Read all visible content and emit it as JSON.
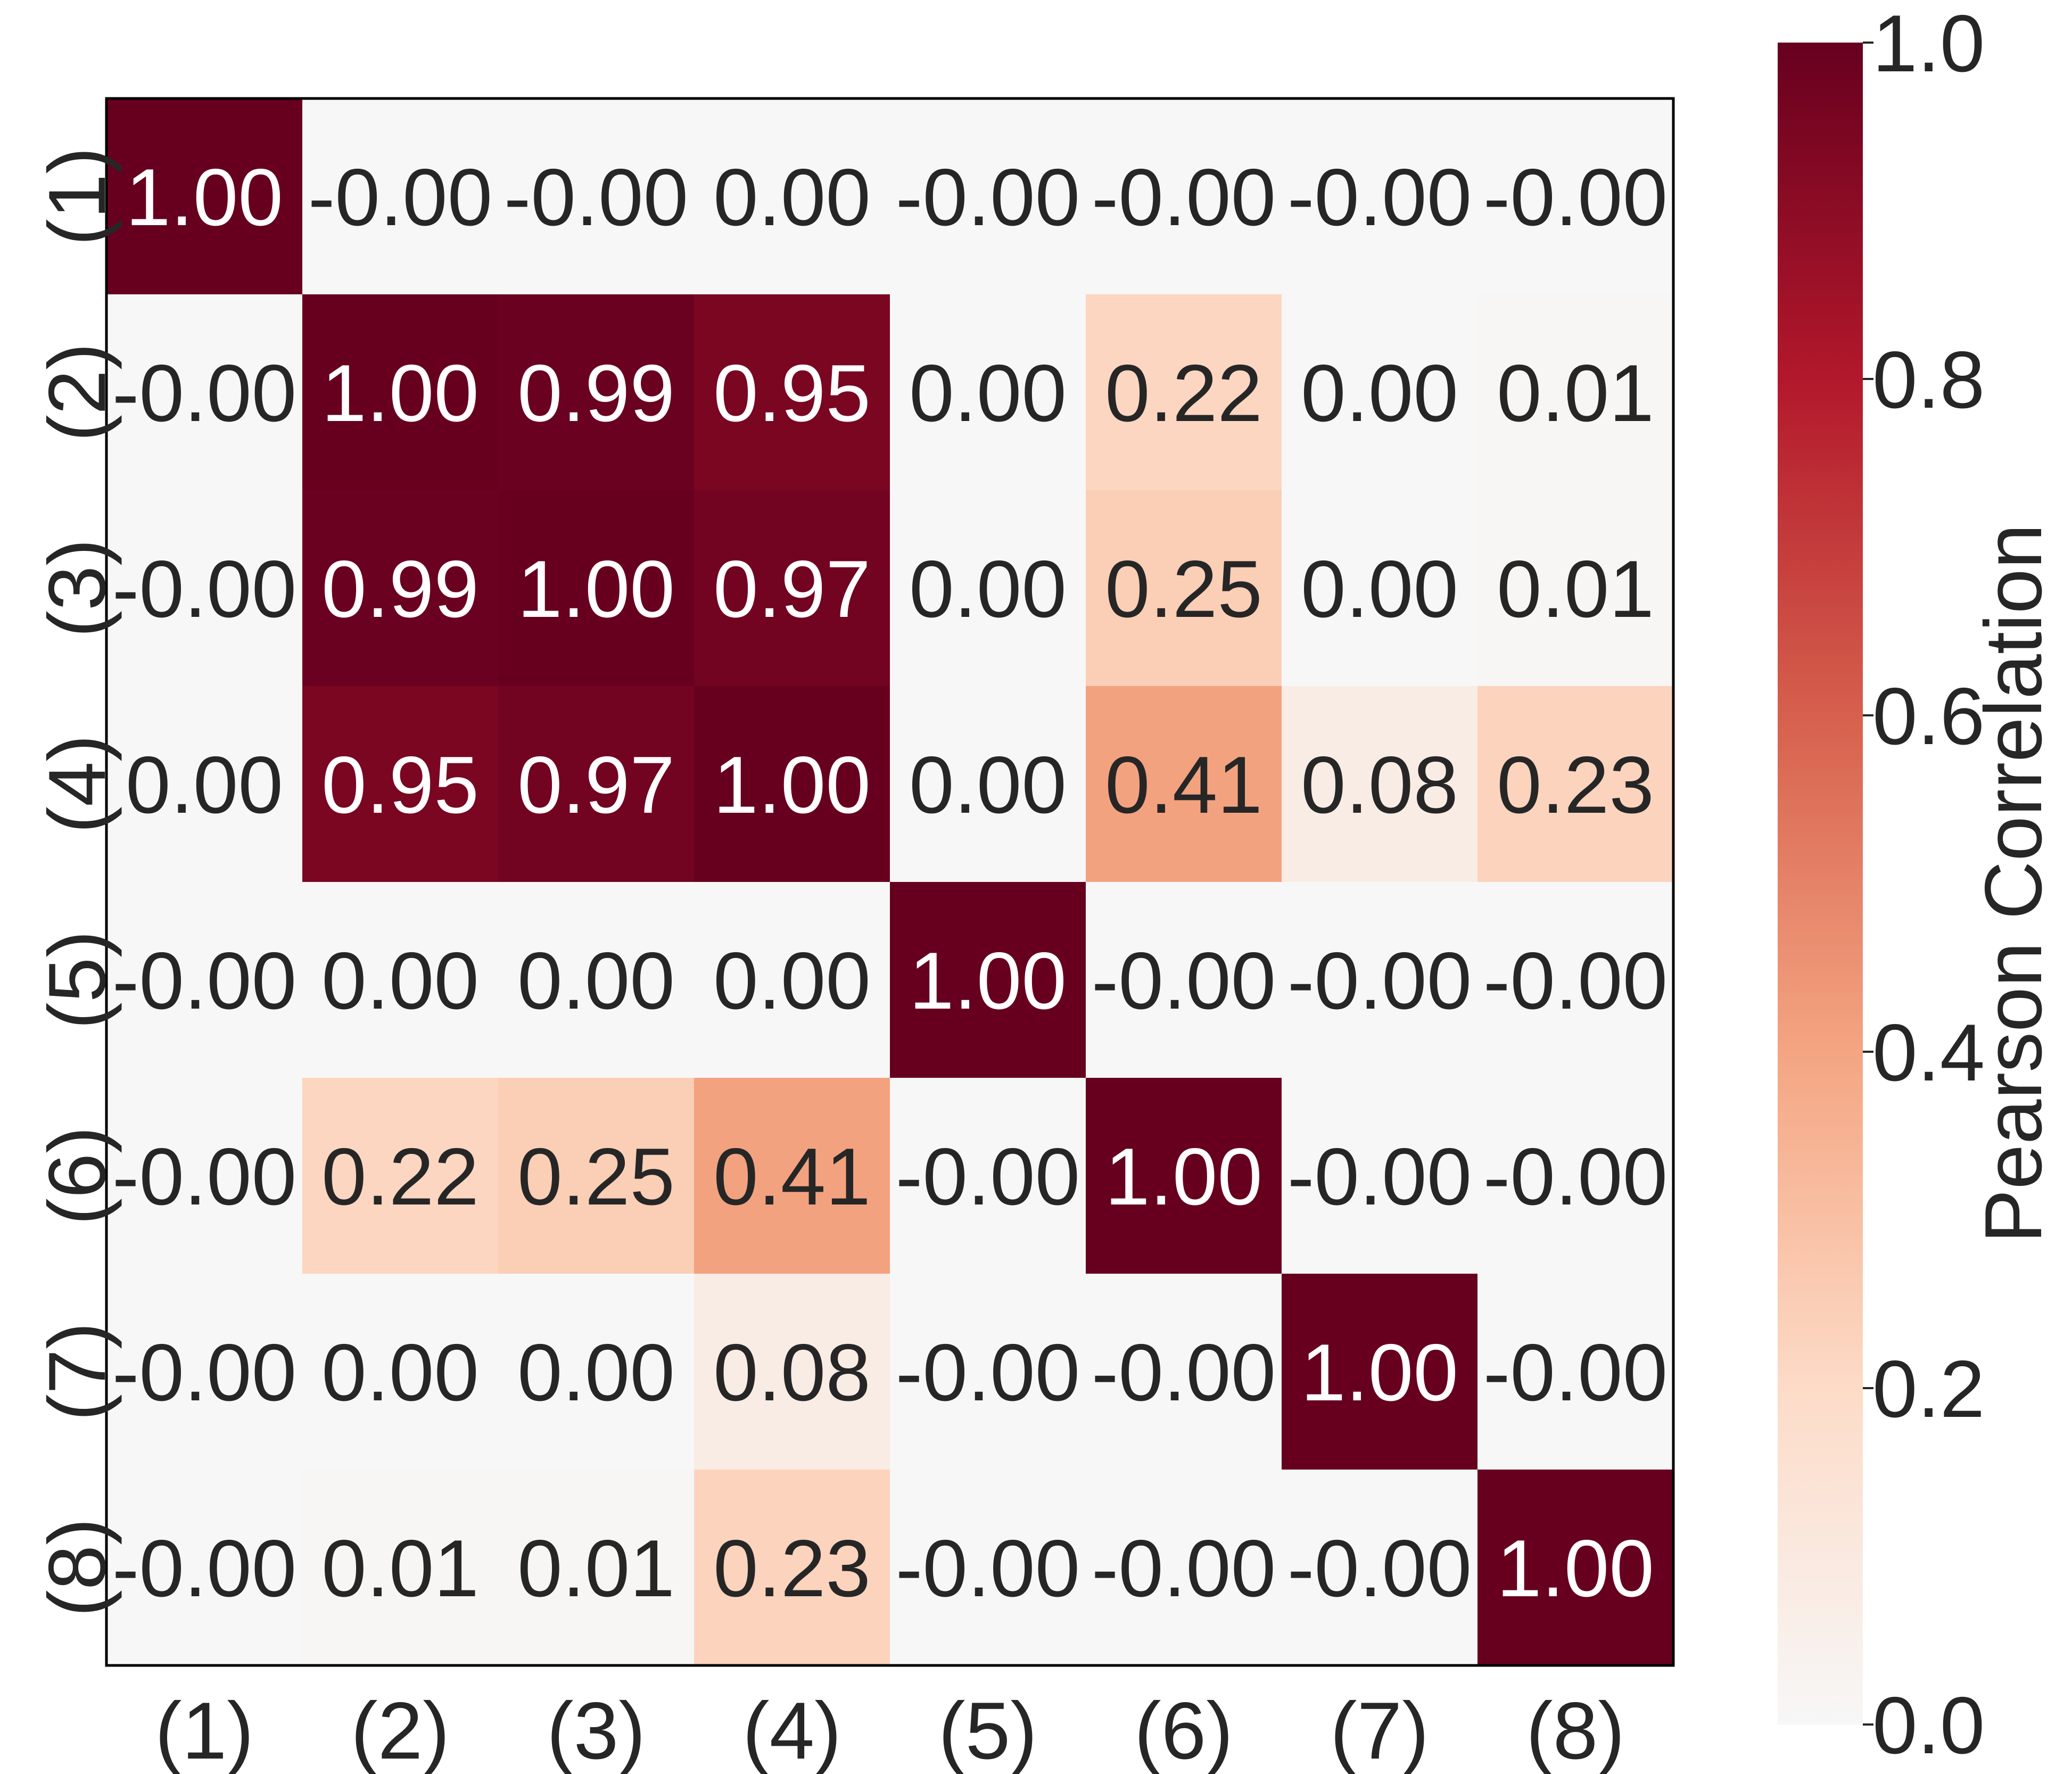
{
  "chart_data": {
    "type": "heatmap",
    "x_labels": [
      "(1)",
      "(2)",
      "(3)",
      "(4)",
      "(5)",
      "(6)",
      "(7)",
      "(8)"
    ],
    "y_labels": [
      "(1)",
      "(2)",
      "(3)",
      "(4)",
      "(5)",
      "(6)",
      "(7)",
      "(8)"
    ],
    "values": [
      [
        1.0,
        -0.0,
        -0.0,
        0.0,
        -0.0,
        -0.0,
        -0.0,
        -0.0
      ],
      [
        -0.0,
        1.0,
        0.99,
        0.95,
        0.0,
        0.22,
        0.0,
        0.01
      ],
      [
        -0.0,
        0.99,
        1.0,
        0.97,
        0.0,
        0.25,
        0.0,
        0.01
      ],
      [
        0.0,
        0.95,
        0.97,
        1.0,
        0.0,
        0.41,
        0.08,
        0.23
      ],
      [
        -0.0,
        0.0,
        0.0,
        0.0,
        1.0,
        -0.0,
        -0.0,
        -0.0
      ],
      [
        -0.0,
        0.22,
        0.25,
        0.41,
        -0.0,
        1.0,
        -0.0,
        -0.0
      ],
      [
        -0.0,
        0.0,
        0.0,
        0.08,
        -0.0,
        -0.0,
        1.0,
        -0.0
      ],
      [
        -0.0,
        0.01,
        0.01,
        0.23,
        -0.0,
        -0.0,
        -0.0,
        1.0
      ]
    ],
    "value_labels": [
      [
        "1.00",
        "-0.00",
        "-0.00",
        "0.00",
        "-0.00",
        "-0.00",
        "-0.00",
        "-0.00"
      ],
      [
        "-0.00",
        "1.00",
        "0.99",
        "0.95",
        "0.00",
        "0.22",
        "0.00",
        "0.01"
      ],
      [
        "-0.00",
        "0.99",
        "1.00",
        "0.97",
        "0.00",
        "0.25",
        "0.00",
        "0.01"
      ],
      [
        "0.00",
        "0.95",
        "0.97",
        "1.00",
        "0.00",
        "0.41",
        "0.08",
        "0.23"
      ],
      [
        "-0.00",
        "0.00",
        "0.00",
        "0.00",
        "1.00",
        "-0.00",
        "-0.00",
        "-0.00"
      ],
      [
        "-0.00",
        "0.22",
        "0.25",
        "0.41",
        "-0.00",
        "1.00",
        "-0.00",
        "-0.00"
      ],
      [
        "-0.00",
        "0.00",
        "0.00",
        "0.08",
        "-0.00",
        "-0.00",
        "1.00",
        "-0.00"
      ],
      [
        "-0.00",
        "0.01",
        "0.01",
        "0.23",
        "-0.00",
        "-0.00",
        "-0.00",
        "1.00"
      ]
    ],
    "colorbar": {
      "label": "Pearson Correlation",
      "range": [
        0.0,
        1.0
      ],
      "ticks": [
        "0.0",
        "0.2",
        "0.4",
        "0.6",
        "0.8",
        "1.0"
      ],
      "colormap": "RdBu_r (positive half)"
    },
    "colors": {
      "stops": [
        "#f7f7f7",
        "#fddbc7",
        "#f4a582",
        "#d6604d",
        "#b2182b",
        "#67001f"
      ],
      "text_dark": "#262626",
      "text_light": "#ffffff",
      "frame": "#000000"
    },
    "grid": false
  }
}
